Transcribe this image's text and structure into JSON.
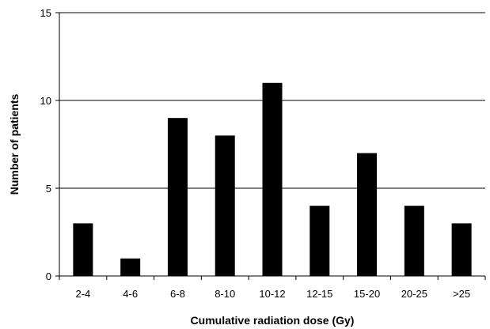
{
  "chart_data": {
    "type": "bar",
    "categories": [
      "2-4",
      "4-6",
      "6-8",
      "8-10",
      "10-12",
      "12-15",
      "15-20",
      "20-25",
      ">25"
    ],
    "values": [
      3,
      1,
      9,
      8,
      11,
      4,
      7,
      4,
      3
    ],
    "xlabel": "Cumulative radiation dose (Gy)",
    "ylabel": "Number of patients",
    "ylim": [
      0,
      15
    ],
    "yticks": [
      "0",
      "5",
      "10",
      "15"
    ],
    "grid": true,
    "legend": "none",
    "bar_color": "#000000",
    "grid_color": "#000000"
  }
}
